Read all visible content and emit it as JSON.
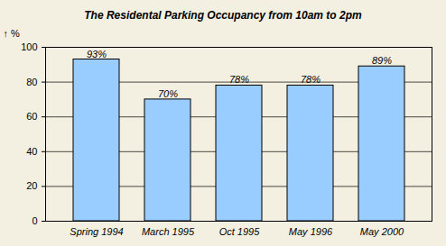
{
  "chart_data": {
    "type": "bar",
    "title": "The Residental Parking Occupancy from 10am to 2pm",
    "y_label": "%",
    "categories": [
      "Spring 1994",
      "March 1995",
      "Oct 1995",
      "May 1996",
      "May 2000"
    ],
    "values": [
      93,
      70,
      78,
      78,
      89
    ],
    "value_labels": [
      "93%",
      "70%",
      "78%",
      "78%",
      "89%"
    ],
    "data_labels": true,
    "color": "#99ccff",
    "ylim": [
      0,
      100
    ],
    "yticks": [
      0,
      20,
      40,
      60,
      80,
      100
    ],
    "grid": true
  }
}
